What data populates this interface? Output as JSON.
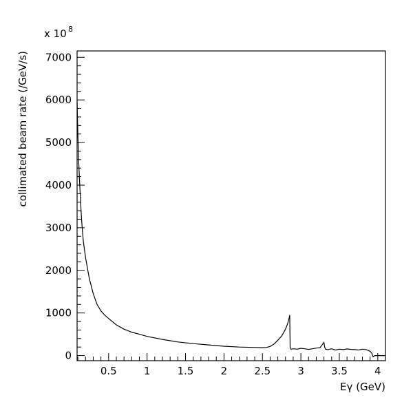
{
  "chart_data": {
    "type": "line",
    "xlabel": "Eγ (GeV)",
    "ylabel": "collimated beam rate (/GeV/s)",
    "y_multiplier": {
      "base": "x 10",
      "exponent": "8"
    },
    "xlim": [
      0.09,
      4.1
    ],
    "ylim": [
      -120,
      7150
    ],
    "x_ticks": [
      0.5,
      1,
      1.5,
      2,
      2.5,
      3,
      3.5,
      4
    ],
    "x_tick_labels": [
      "0.5",
      "1",
      "1.5",
      "2",
      "2.5",
      "3",
      "3.5",
      "4"
    ],
    "y_ticks": [
      0,
      1000,
      2000,
      3000,
      4000,
      5000,
      6000,
      7000
    ],
    "y_tick_labels": [
      "0",
      "1000",
      "2000",
      "3000",
      "4000",
      "5000",
      "6000",
      "7000"
    ],
    "grid": false,
    "series": [
      {
        "x": [
          0.09,
          0.1,
          0.11,
          0.12,
          0.13,
          0.14,
          0.15,
          0.17,
          0.2,
          0.23,
          0.25,
          0.3,
          0.35,
          0.4,
          0.45,
          0.5,
          0.6,
          0.7,
          0.8,
          0.9,
          1.0,
          1.2,
          1.4,
          1.6,
          1.8,
          2.0,
          2.2,
          2.4,
          2.5,
          2.55,
          2.6,
          2.65,
          2.7,
          2.75,
          2.8,
          2.83,
          2.85,
          2.855,
          2.86,
          2.87,
          2.9,
          2.95,
          3.0,
          3.05,
          3.1,
          3.15,
          3.2,
          3.25,
          3.3,
          3.31,
          3.32,
          3.35,
          3.4,
          3.45,
          3.5,
          3.55,
          3.6,
          3.65,
          3.7,
          3.75,
          3.8,
          3.85,
          3.9,
          3.92,
          3.93,
          3.94,
          3.96,
          4.1
        ],
        "values": [
          5950,
          5200,
          4600,
          4150,
          3800,
          3450,
          3150,
          2700,
          2300,
          2000,
          1800,
          1450,
          1200,
          1050,
          950,
          870,
          720,
          620,
          550,
          500,
          450,
          380,
          320,
          280,
          250,
          220,
          200,
          190,
          185,
          190,
          215,
          270,
          360,
          460,
          620,
          760,
          900,
          950,
          200,
          150,
          160,
          150,
          170,
          160,
          145,
          160,
          175,
          185,
          310,
          200,
          150,
          140,
          160,
          130,
          150,
          140,
          155,
          145,
          140,
          130,
          150,
          140,
          100,
          60,
          20,
          -30,
          0,
          0
        ]
      }
    ]
  }
}
